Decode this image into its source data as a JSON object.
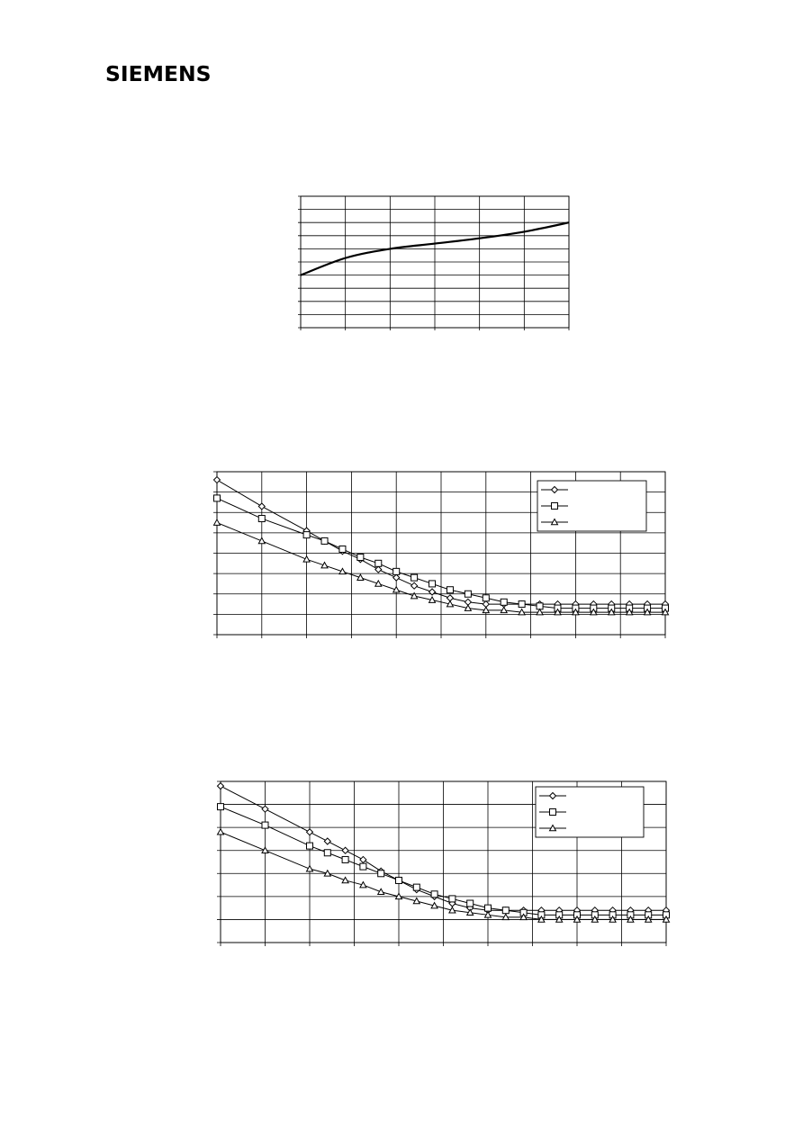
{
  "header": {
    "logo_text": "SIEMENS"
  },
  "chart_data": [
    {
      "type": "line",
      "grid": true,
      "x": [
        0,
        1,
        2,
        3,
        4,
        5,
        6
      ],
      "xlim": [
        0,
        6
      ],
      "ylim": [
        0,
        10
      ],
      "series": [
        {
          "values": [
            4.0,
            5.3,
            6.0,
            6.4,
            6.8,
            7.3,
            8.0
          ]
        }
      ],
      "colors": {
        "line": "#000000",
        "grid": "#000000"
      }
    },
    {
      "type": "line",
      "grid": true,
      "legend": "top-right",
      "xlim": [
        0,
        10
      ],
      "ylim": [
        0,
        8
      ],
      "series": [
        {
          "marker": "diamond",
          "x": [
            0,
            1,
            2,
            2.4,
            2.8,
            3.2,
            3.6,
            4,
            4.4,
            4.8,
            5.2,
            5.6,
            6,
            6.4,
            6.8,
            7.2,
            7.6,
            8,
            8.4,
            8.8,
            9.2,
            9.6,
            10
          ],
          "values": [
            7.6,
            6.3,
            5.1,
            4.6,
            4.1,
            3.7,
            3.2,
            2.8,
            2.4,
            2.1,
            1.8,
            1.6,
            1.5,
            1.5,
            1.5,
            1.5,
            1.5,
            1.5,
            1.5,
            1.5,
            1.5,
            1.5,
            1.5
          ]
        },
        {
          "marker": "square",
          "x": [
            0,
            1,
            2,
            2.4,
            2.8,
            3.2,
            3.6,
            4,
            4.4,
            4.8,
            5.2,
            5.6,
            6,
            6.4,
            6.8,
            7.2,
            7.6,
            8,
            8.4,
            8.8,
            9.2,
            9.6,
            10
          ],
          "values": [
            6.7,
            5.7,
            4.9,
            4.6,
            4.2,
            3.8,
            3.5,
            3.1,
            2.8,
            2.5,
            2.2,
            2.0,
            1.8,
            1.6,
            1.5,
            1.4,
            1.3,
            1.3,
            1.3,
            1.3,
            1.3,
            1.3,
            1.3
          ]
        },
        {
          "marker": "triangle",
          "x": [
            0,
            1,
            2,
            2.4,
            2.8,
            3.2,
            3.6,
            4,
            4.4,
            4.8,
            5.2,
            5.6,
            6,
            6.4,
            6.8,
            7.2,
            7.6,
            8,
            8.4,
            8.8,
            9.2,
            9.6,
            10
          ],
          "values": [
            5.5,
            4.6,
            3.7,
            3.4,
            3.1,
            2.8,
            2.5,
            2.2,
            1.9,
            1.7,
            1.5,
            1.3,
            1.2,
            1.2,
            1.1,
            1.1,
            1.1,
            1.1,
            1.1,
            1.1,
            1.1,
            1.1,
            1.1
          ]
        }
      ],
      "colors": {
        "line": "#000000",
        "grid": "#000000",
        "marker_fill": "#ffffff"
      }
    },
    {
      "type": "line",
      "grid": true,
      "legend": "top-right",
      "xlim": [
        0,
        10
      ],
      "ylim": [
        0,
        7
      ],
      "series": [
        {
          "marker": "diamond",
          "x": [
            0,
            1,
            2,
            2.4,
            2.8,
            3.2,
            3.6,
            4,
            4.4,
            4.8,
            5.2,
            5.6,
            6,
            6.4,
            6.8,
            7.2,
            7.6,
            8,
            8.4,
            8.8,
            9.2,
            9.6,
            10
          ],
          "values": [
            6.8,
            5.8,
            4.8,
            4.4,
            4.0,
            3.6,
            3.1,
            2.7,
            2.3,
            2.0,
            1.7,
            1.5,
            1.4,
            1.4,
            1.4,
            1.4,
            1.4,
            1.4,
            1.4,
            1.4,
            1.4,
            1.4,
            1.4
          ]
        },
        {
          "marker": "square",
          "x": [
            0,
            1,
            2,
            2.4,
            2.8,
            3.2,
            3.6,
            4,
            4.4,
            4.8,
            5.2,
            5.6,
            6,
            6.4,
            6.8,
            7.2,
            7.6,
            8,
            8.4,
            8.8,
            9.2,
            9.6,
            10
          ],
          "values": [
            5.9,
            5.1,
            4.2,
            3.9,
            3.6,
            3.3,
            3.0,
            2.7,
            2.4,
            2.1,
            1.9,
            1.7,
            1.5,
            1.4,
            1.3,
            1.2,
            1.2,
            1.2,
            1.2,
            1.2,
            1.2,
            1.2,
            1.2
          ]
        },
        {
          "marker": "triangle",
          "x": [
            0,
            1,
            2,
            2.4,
            2.8,
            3.2,
            3.6,
            4,
            4.4,
            4.8,
            5.2,
            5.6,
            6,
            6.4,
            6.8,
            7.2,
            7.6,
            8,
            8.4,
            8.8,
            9.2,
            9.6,
            10
          ],
          "values": [
            4.8,
            4.0,
            3.2,
            3.0,
            2.7,
            2.5,
            2.2,
            2.0,
            1.8,
            1.6,
            1.4,
            1.3,
            1.2,
            1.1,
            1.1,
            1.0,
            1.0,
            1.0,
            1.0,
            1.0,
            1.0,
            1.0,
            1.0
          ]
        }
      ],
      "colors": {
        "line": "#000000",
        "grid": "#000000",
        "marker_fill": "#ffffff"
      }
    }
  ]
}
